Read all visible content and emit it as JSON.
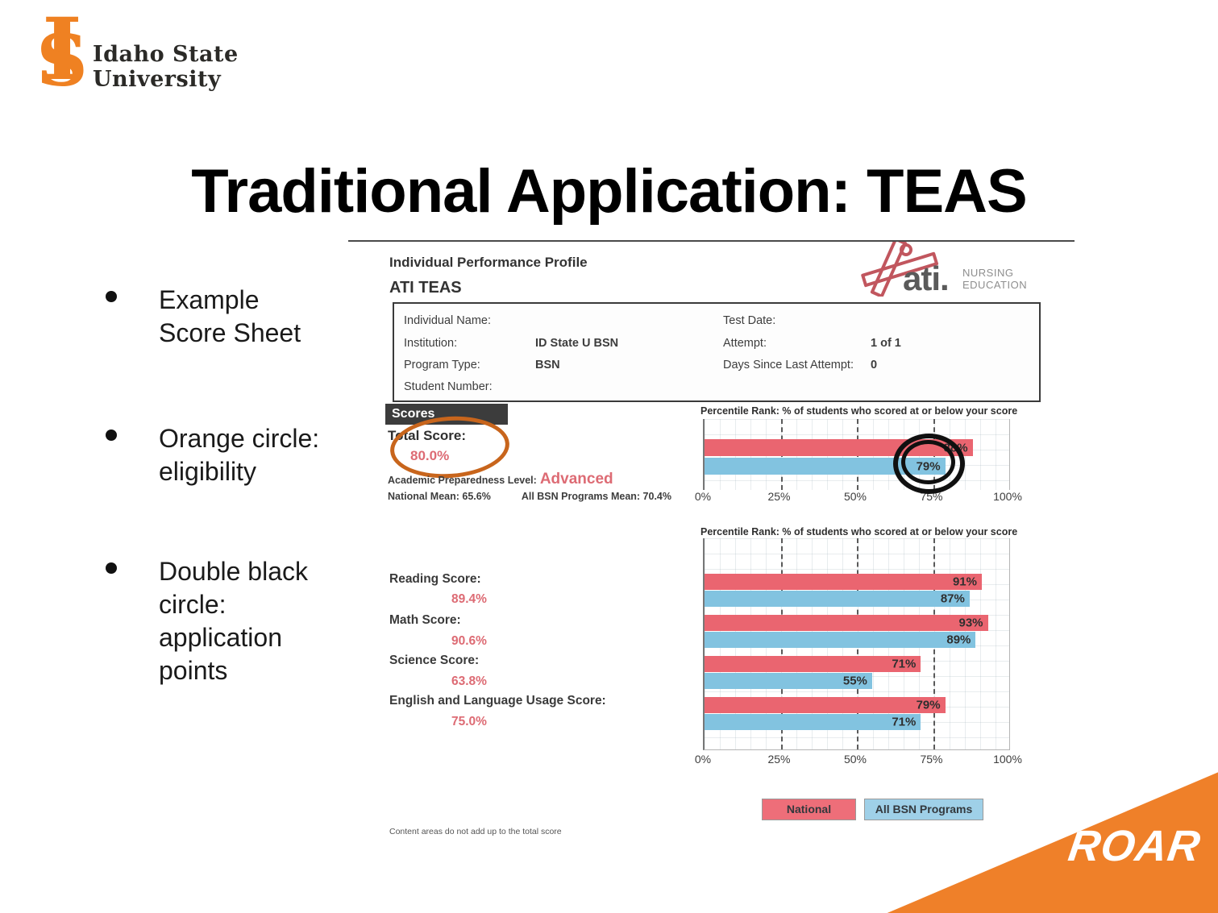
{
  "slide": {
    "logo": {
      "monogram_i": "I",
      "monogram_s": "S",
      "line1": "Idaho State",
      "line2": "University",
      "brand_orange": "#ef8122"
    },
    "title": "Traditional Application: TEAS",
    "bullets": [
      "Example Score Sheet",
      "Orange circle: eligibility",
      "Double black circle: application points"
    ],
    "roar": "ROAR"
  },
  "report": {
    "heading1": "Individual Performance Profile",
    "heading2": "ATI TEAS",
    "ati": {
      "word": "ati.",
      "sub1": "NURSING",
      "sub2": "EDUCATION"
    },
    "info": {
      "left": [
        {
          "label": "Individual Name:",
          "value": ""
        },
        {
          "label": "Institution:",
          "value": "ID State U BSN"
        },
        {
          "label": "Program Type:",
          "value": "BSN"
        },
        {
          "label": "Student Number:",
          "value": ""
        }
      ],
      "right": [
        {
          "label": "Test Date:",
          "value": ""
        },
        {
          "label": "Attempt:",
          "value": "1 of 1"
        },
        {
          "label": "Days Since Last Attempt:",
          "value": "0"
        }
      ]
    },
    "scores": {
      "section_label": "Scores",
      "total_label": "Total Score:",
      "total_value": "80.0%",
      "prep_label": "Academic Preparedness Level:",
      "prep_value": "Advanced",
      "national_mean": "National Mean: 65.6%",
      "bsn_mean": "All BSN Programs Mean: 70.4%"
    },
    "content_scores": [
      {
        "label": "Reading Score:",
        "value": "89.4%"
      },
      {
        "label": "Math Score:",
        "value": "90.6%"
      },
      {
        "label": "Science Score:",
        "value": "63.8%"
      },
      {
        "label": "English and Language Usage Score:",
        "value": "75.0%"
      }
    ],
    "legend": [
      {
        "label": "National",
        "color": "#ee6e79"
      },
      {
        "label": "All BSN Programs",
        "color": "#9fd0e8"
      }
    ],
    "footnote": "Content areas do not add up to the total score"
  },
  "chart_data": [
    {
      "type": "bar",
      "orientation": "horizontal",
      "title": "Percentile Rank: % of students who scored at or below your score",
      "categories": [
        "Total Score"
      ],
      "series": [
        {
          "name": "National",
          "color": "#ea6570",
          "values": [
            88
          ]
        },
        {
          "name": "All BSN Programs",
          "color": "#82c3e0",
          "values": [
            79
          ]
        }
      ],
      "xlim": [
        0,
        100
      ],
      "xticks": [
        "0%",
        "25%",
        "50%",
        "75%",
        "100%"
      ],
      "grid": "fine graph-paper with dashed lines at 25/50/75",
      "annotation": "double black circle around 79% value"
    },
    {
      "type": "bar",
      "orientation": "horizontal",
      "title": "Percentile Rank: % of students who scored at or below your score",
      "categories": [
        "Reading",
        "Math",
        "Science",
        "English and Language Usage"
      ],
      "series": [
        {
          "name": "National",
          "color": "#ea6570",
          "values": [
            91,
            93,
            71,
            79
          ]
        },
        {
          "name": "All BSN Programs",
          "color": "#82c3e0",
          "values": [
            87,
            89,
            55,
            71
          ]
        }
      ],
      "xlim": [
        0,
        100
      ],
      "xticks": [
        "0%",
        "25%",
        "50%",
        "75%",
        "100%"
      ],
      "grid": "fine graph-paper with dashed lines at 25/50/75",
      "legend_position": "bottom"
    }
  ]
}
